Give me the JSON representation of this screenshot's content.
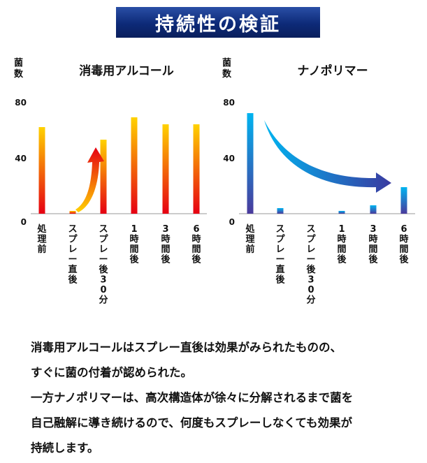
{
  "banner": {
    "title": "持続性の検証"
  },
  "chart_data": [
    {
      "type": "bar",
      "title": "消毒用アルコール",
      "ylabel": "菌数",
      "ylim": [
        0,
        80
      ],
      "yticks": [
        0,
        40,
        80
      ],
      "categories": [
        "処理前",
        "スプレー直後",
        "スプレー後30分",
        "1時間後",
        "3時間後",
        "6時間後"
      ],
      "values": [
        62,
        2,
        53,
        69,
        64,
        64
      ],
      "grid": false,
      "bar_colors": {
        "top": "#ffd200",
        "bottom": "#e60012"
      },
      "annotation": {
        "type": "arrow",
        "from": "スプレー直後",
        "to": "スプレー後30分",
        "direction": "up",
        "color": "#e60012"
      }
    },
    {
      "type": "bar",
      "title": "ナノポリマー",
      "ylabel": "菌数",
      "ylim": [
        0,
        80
      ],
      "yticks": [
        0,
        40,
        80
      ],
      "categories": [
        "処理前",
        "スプレー直後",
        "スプレー後30分",
        "1時間後",
        "3時間後",
        "6時間後"
      ],
      "values": [
        72,
        4,
        0,
        2,
        6,
        19
      ],
      "grid": false,
      "bar_colors": {
        "top": "#00b4f0",
        "bottom": "#4a3a9c"
      },
      "annotation": {
        "type": "arrow",
        "from": "処理前",
        "to": "6時間後",
        "direction": "down-right",
        "color": "#2a62c8"
      }
    }
  ],
  "caption": {
    "lines": [
      "消毒用アルコールはスプレー直後は効果がみられたものの、",
      "すぐに菌の付着が認められた。",
      "一方ナノポリマーは、高次構造体が徐々に分解されるまで菌を",
      "自己融解に導き続けるので、何度もスプレーしなくても効果が",
      "持続します。"
    ]
  }
}
